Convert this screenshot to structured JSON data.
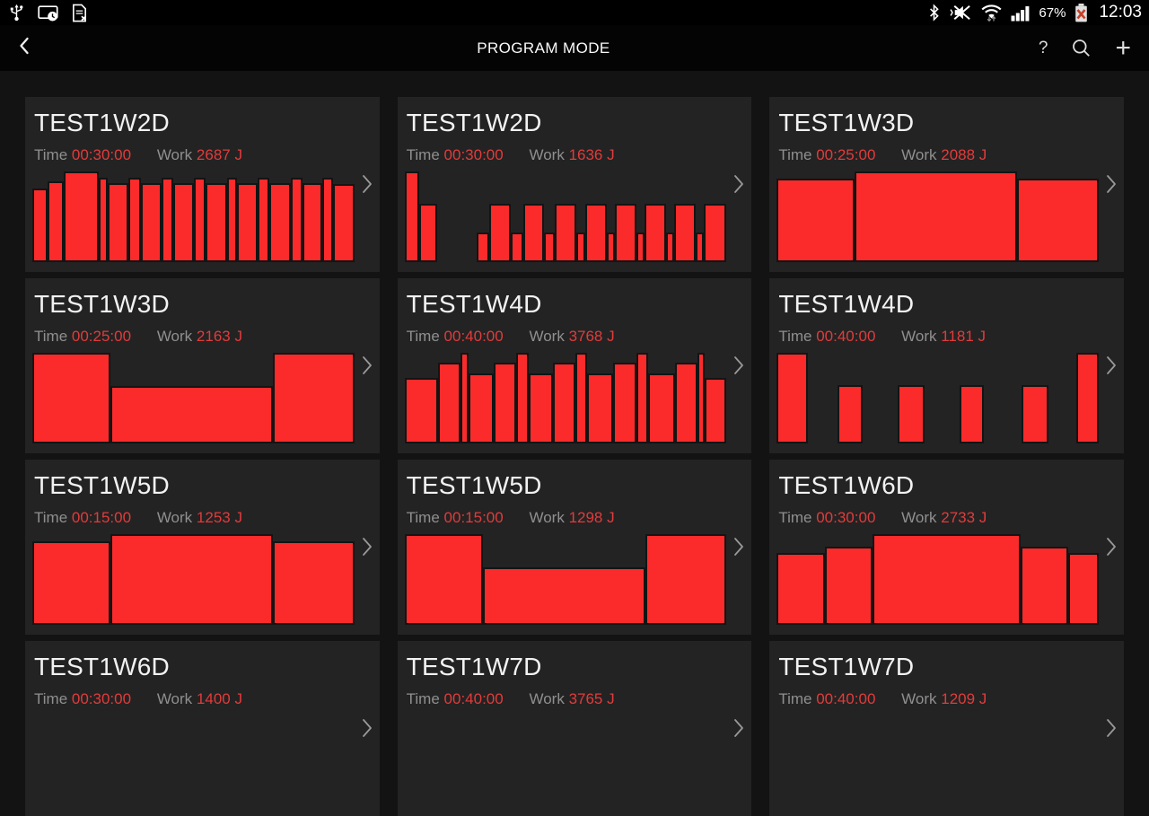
{
  "status_bar": {
    "time": "12:03",
    "battery_percent": "67%",
    "left_icons": [
      "usb-icon",
      "smart-view-clock-icon",
      "file-error-icon"
    ],
    "right_icons": [
      "bluetooth-icon",
      "mute-vibrate-icon",
      "wifi-updown-icon",
      "signal-strength-icon",
      "battery-error-icon"
    ]
  },
  "header": {
    "title": "PROGRAM MODE",
    "back_icon": "back-chevron-icon",
    "help_label": "?",
    "search_icon": "search-icon",
    "add_label": "+"
  },
  "labels": {
    "time": "Time",
    "work": "Work"
  },
  "colors": {
    "bar_red": "#fb2b2b",
    "value_red": "#e23b3b",
    "card_bg": "#232323",
    "page_bg": "#131313"
  },
  "programs": [
    {
      "name": "TEST1W2D",
      "time": "00:30:00",
      "work": "2687 J",
      "bars": [
        {
          "h": 0.81,
          "w": 1.5
        },
        {
          "h": 0.89,
          "w": 1.5
        },
        {
          "h": 1,
          "w": 3.4
        },
        {
          "h": 0.93,
          "w": 0.9
        },
        {
          "h": 0.87,
          "w": 2
        },
        {
          "h": 0.93,
          "w": 1.2
        },
        {
          "h": 0.87,
          "w": 2
        },
        {
          "h": 0.93,
          "w": 1.1
        },
        {
          "h": 0.87,
          "w": 2
        },
        {
          "h": 0.93,
          "w": 1.1
        },
        {
          "h": 0.87,
          "w": 2.1
        },
        {
          "h": 0.93,
          "w": 1
        },
        {
          "h": 0.87,
          "w": 2
        },
        {
          "h": 0.93,
          "w": 1.1
        },
        {
          "h": 0.87,
          "w": 2.1
        },
        {
          "h": 0.93,
          "w": 1.1
        },
        {
          "h": 0.87,
          "w": 1.9
        },
        {
          "h": 0.93,
          "w": 1.1
        },
        {
          "h": 0.86,
          "w": 2
        }
      ]
    },
    {
      "name": "TEST1W2D",
      "time": "00:30:00",
      "work": "1636 J",
      "bars": [
        {
          "h": 1,
          "w": 1.4
        },
        {
          "h": 0.64,
          "w": 1.7
        },
        {
          "h": 0.33,
          "w": 1.2,
          "g": 3.7
        },
        {
          "h": 0.64,
          "w": 2
        },
        {
          "h": 0.33,
          "w": 1.2
        },
        {
          "h": 0.64,
          "w": 2
        },
        {
          "h": 0.33,
          "w": 1
        },
        {
          "h": 0.64,
          "w": 2
        },
        {
          "h": 0.33,
          "w": 0.9
        },
        {
          "h": 0.64,
          "w": 2
        },
        {
          "h": 0.33,
          "w": 0.8
        },
        {
          "h": 0.64,
          "w": 2
        },
        {
          "h": 0.33,
          "w": 0.8
        },
        {
          "h": 0.64,
          "w": 2
        },
        {
          "h": 0.33,
          "w": 0.8
        },
        {
          "h": 0.64,
          "w": 2
        },
        {
          "h": 0.33,
          "w": 0.8
        },
        {
          "h": 0.64,
          "w": 2.1
        }
      ]
    },
    {
      "name": "TEST1W3D",
      "time": "00:25:00",
      "work": "2088 J",
      "bars": [
        {
          "h": 0.92,
          "w": 24
        },
        {
          "h": 1,
          "w": 50
        },
        {
          "h": 0.92,
          "w": 25
        }
      ]
    },
    {
      "name": "TEST1W3D",
      "time": "00:25:00",
      "work": "2163 J",
      "bars": [
        {
          "h": 1,
          "w": 24
        },
        {
          "h": 0.63,
          "w": 50
        },
        {
          "h": 1,
          "w": 25
        }
      ]
    },
    {
      "name": "TEST1W4D",
      "time": "00:40:00",
      "work": "3768 J",
      "bars": [
        {
          "h": 0.72,
          "w": 3.3
        },
        {
          "h": 0.89,
          "w": 2.3
        },
        {
          "h": 1,
          "w": 0.8
        },
        {
          "h": 0.77,
          "w": 2.5
        },
        {
          "h": 0.89,
          "w": 2.2
        },
        {
          "h": 1,
          "w": 1.3
        },
        {
          "h": 0.77,
          "w": 2.4
        },
        {
          "h": 0.89,
          "w": 2.2
        },
        {
          "h": 1,
          "w": 1.2
        },
        {
          "h": 0.77,
          "w": 2.6
        },
        {
          "h": 0.89,
          "w": 2.3
        },
        {
          "h": 1,
          "w": 1.2
        },
        {
          "h": 0.77,
          "w": 2.7
        },
        {
          "h": 0.89,
          "w": 2.2
        },
        {
          "h": 1,
          "w": 0.7
        },
        {
          "h": 0.72,
          "w": 2.2
        }
      ]
    },
    {
      "name": "TEST1W4D",
      "time": "00:40:00",
      "work": "1181 J",
      "bars": [
        {
          "h": 1,
          "w": 1.05
        },
        {
          "h": 0.64,
          "w": 0.85,
          "g": 1.0
        },
        {
          "h": 0.64,
          "w": 0.9,
          "g": 1.2
        },
        {
          "h": 0.64,
          "w": 0.8,
          "g": 1.2
        },
        {
          "h": 0.64,
          "w": 0.9,
          "g": 1.3
        },
        {
          "h": 1,
          "w": 0.75,
          "g": 0.95
        }
      ]
    },
    {
      "name": "TEST1W5D",
      "time": "00:15:00",
      "work": "1253 J",
      "bars": [
        {
          "h": 0.92,
          "w": 24
        },
        {
          "h": 1,
          "w": 50
        },
        {
          "h": 0.92,
          "w": 25
        }
      ]
    },
    {
      "name": "TEST1W5D",
      "time": "00:15:00",
      "work": "1298 J",
      "bars": [
        {
          "h": 1,
          "w": 24
        },
        {
          "h": 0.63,
          "w": 50
        },
        {
          "h": 1,
          "w": 25
        }
      ]
    },
    {
      "name": "TEST1W6D",
      "time": "00:30:00",
      "work": "2733 J",
      "bars": [
        {
          "h": 0.79,
          "w": 15
        },
        {
          "h": 0.86,
          "w": 14.5
        },
        {
          "h": 1,
          "w": 46
        },
        {
          "h": 0.86,
          "w": 14.5
        },
        {
          "h": 0.79,
          "w": 9.5
        }
      ]
    },
    {
      "name": "TEST1W6D",
      "time": "00:30:00",
      "work": "1400 J",
      "bars": []
    },
    {
      "name": "TEST1W7D",
      "time": "00:40:00",
      "work": "3765 J",
      "bars": []
    },
    {
      "name": "TEST1W7D",
      "time": "00:40:00",
      "work": "1209 J",
      "bars": []
    }
  ]
}
